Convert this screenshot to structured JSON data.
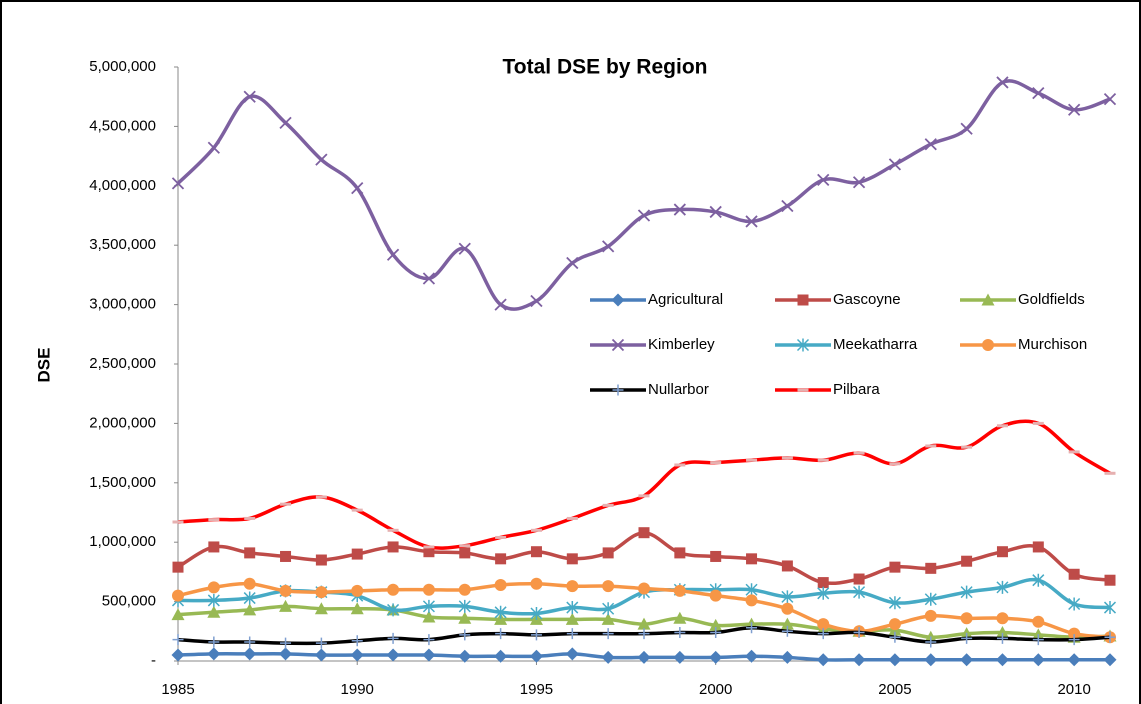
{
  "chart_data": {
    "type": "line",
    "title": "Total DSE by Region",
    "y_label": "DSE",
    "x": [
      1985,
      1986,
      1987,
      1988,
      1989,
      1990,
      1991,
      1992,
      1993,
      1994,
      1995,
      1996,
      1997,
      1998,
      1999,
      2000,
      2001,
      2002,
      2003,
      2004,
      2005,
      2006,
      2007,
      2008,
      2009,
      2010,
      2011
    ],
    "xlim": [
      1985,
      2011
    ],
    "xticks": [
      1985,
      1990,
      1995,
      2000,
      2005,
      2010
    ],
    "ylim": [
      0,
      5000000
    ],
    "yticks": [
      {
        "value": 0,
        "label": "-"
      },
      {
        "value": 500000,
        "label": "500,000"
      },
      {
        "value": 1000000,
        "label": "1,000,000"
      },
      {
        "value": 1500000,
        "label": "1,500,000"
      },
      {
        "value": 2000000,
        "label": "2,000,000"
      },
      {
        "value": 2500000,
        "label": "2,500,000"
      },
      {
        "value": 3000000,
        "label": "3,000,000"
      },
      {
        "value": 3500000,
        "label": "3,500,000"
      },
      {
        "value": 4000000,
        "label": "4,000,000"
      },
      {
        "value": 4500000,
        "label": "4,500,000"
      },
      {
        "value": 5000000,
        "label": "5,000,000"
      }
    ],
    "grid": false,
    "smooth": true,
    "series": [
      {
        "name": "Agricultural",
        "color": "#4a7ebb",
        "marker": "diamond",
        "values": [
          50000,
          60000,
          60000,
          60000,
          50000,
          50000,
          50000,
          50000,
          40000,
          40000,
          40000,
          60000,
          30000,
          30000,
          30000,
          30000,
          40000,
          30000,
          10000,
          10000,
          10000,
          10000,
          10000,
          10000,
          10000,
          10000,
          10000
        ]
      },
      {
        "name": "Gascoyne",
        "color": "#be4b48",
        "marker": "square",
        "values": [
          790000,
          960000,
          910000,
          880000,
          850000,
          900000,
          960000,
          920000,
          910000,
          860000,
          920000,
          860000,
          910000,
          1080000,
          910000,
          880000,
          860000,
          800000,
          660000,
          690000,
          790000,
          780000,
          840000,
          920000,
          960000,
          730000,
          680000
        ]
      },
      {
        "name": "Goldfields",
        "color": "#98b954",
        "marker": "triangle",
        "values": [
          390000,
          410000,
          430000,
          460000,
          440000,
          440000,
          430000,
          370000,
          360000,
          350000,
          350000,
          350000,
          350000,
          310000,
          360000,
          300000,
          310000,
          310000,
          270000,
          250000,
          260000,
          200000,
          230000,
          240000,
          220000,
          200000,
          210000
        ]
      },
      {
        "name": "Kimberley",
        "color": "#7d60a0",
        "marker": "x",
        "values": [
          4020000,
          4320000,
          4750000,
          4530000,
          4220000,
          3980000,
          3420000,
          3220000,
          3470000,
          3000000,
          3030000,
          3350000,
          3490000,
          3750000,
          3800000,
          3780000,
          3700000,
          3830000,
          4050000,
          4030000,
          4180000,
          4350000,
          4480000,
          4870000,
          4780000,
          4640000,
          4730000
        ]
      },
      {
        "name": "Meekatharra",
        "color": "#46aac5",
        "marker": "star",
        "values": [
          510000,
          510000,
          530000,
          590000,
          580000,
          550000,
          430000,
          460000,
          460000,
          410000,
          400000,
          450000,
          440000,
          580000,
          600000,
          600000,
          600000,
          540000,
          570000,
          580000,
          490000,
          520000,
          580000,
          620000,
          680000,
          480000,
          450000
        ]
      },
      {
        "name": "Murchison",
        "color": "#f79646",
        "marker": "circle",
        "values": [
          550000,
          620000,
          650000,
          590000,
          580000,
          590000,
          600000,
          600000,
          600000,
          640000,
          650000,
          630000,
          630000,
          610000,
          590000,
          550000,
          510000,
          440000,
          310000,
          250000,
          310000,
          380000,
          360000,
          360000,
          330000,
          230000,
          200000
        ]
      },
      {
        "name": "Nullarbor",
        "color": "#000000",
        "marker": "plus",
        "values": [
          180000,
          160000,
          160000,
          150000,
          150000,
          170000,
          190000,
          180000,
          220000,
          230000,
          220000,
          230000,
          230000,
          230000,
          240000,
          240000,
          280000,
          250000,
          230000,
          240000,
          200000,
          160000,
          190000,
          190000,
          180000,
          180000,
          200000
        ]
      },
      {
        "name": "Pilbara",
        "color": "#ff0000",
        "marker": "dash",
        "values": [
          1170000,
          1190000,
          1200000,
          1320000,
          1380000,
          1270000,
          1100000,
          960000,
          970000,
          1040000,
          1100000,
          1200000,
          1310000,
          1390000,
          1650000,
          1670000,
          1690000,
          1710000,
          1690000,
          1750000,
          1660000,
          1810000,
          1800000,
          1980000,
          2000000,
          1760000,
          1580000
        ]
      }
    ]
  }
}
